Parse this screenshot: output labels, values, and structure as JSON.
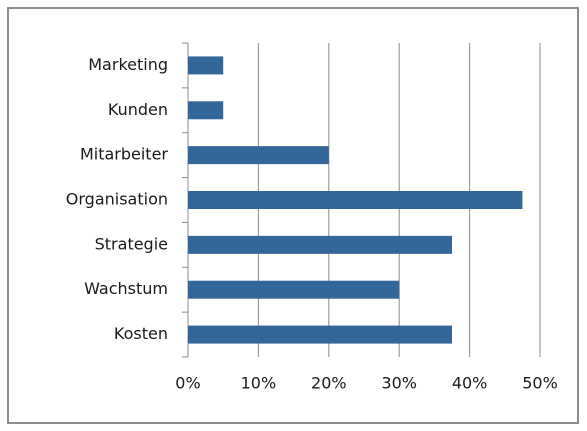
{
  "chart_data": {
    "type": "bar",
    "orientation": "horizontal",
    "categories": [
      "Marketing",
      "Kunden",
      "Mitarbeiter",
      "Organisation",
      "Strategie",
      "Wachstum",
      "Kosten"
    ],
    "values": [
      5,
      5,
      20,
      47.5,
      37.5,
      30,
      37.5
    ],
    "color": "#336699",
    "xlim": [
      0,
      50
    ],
    "xticks": [
      {
        "value": 0,
        "label": "0%"
      },
      {
        "value": 10,
        "label": "10%"
      },
      {
        "value": 20,
        "label": "20%"
      },
      {
        "value": 30,
        "label": "30%"
      },
      {
        "value": 40,
        "label": "40%"
      },
      {
        "value": 50,
        "label": "50%"
      }
    ],
    "grid": true
  }
}
